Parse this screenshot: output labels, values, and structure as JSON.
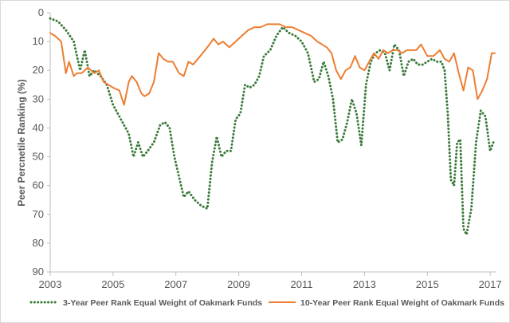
{
  "chart_data": {
    "type": "line",
    "ylabel": "Peer Percnetile Ranking (%)",
    "xlabel": "",
    "xlim": [
      2003,
      2017.2
    ],
    "ylim": [
      0,
      90
    ],
    "y_inverted": true,
    "x_ticks": [
      "2003",
      "2005",
      "2007",
      "2009",
      "2011",
      "2013",
      "2015",
      "2017"
    ],
    "y_ticks": [
      "0",
      "10",
      "20",
      "30",
      "40",
      "50",
      "60",
      "70",
      "80",
      "90"
    ],
    "grid": false,
    "legend_position": "bottom",
    "series": [
      {
        "name": "3-Year Peer Rank Equal Weight of Oakmark Funds",
        "color": "#3a7a3a",
        "style": "dotted",
        "x": [
          2003.0,
          2003.25,
          2003.5,
          2003.75,
          2003.95,
          2004.1,
          2004.25,
          2004.4,
          2004.6,
          2004.8,
          2005.0,
          2005.25,
          2005.5,
          2005.65,
          2005.8,
          2005.95,
          2006.1,
          2006.3,
          2006.5,
          2006.65,
          2006.8,
          2006.95,
          2007.1,
          2007.25,
          2007.4,
          2007.6,
          2007.8,
          2008.0,
          2008.15,
          2008.3,
          2008.45,
          2008.6,
          2008.75,
          2008.9,
          2009.05,
          2009.2,
          2009.35,
          2009.5,
          2009.65,
          2009.8,
          2010.0,
          2010.2,
          2010.4,
          2010.6,
          2010.8,
          2011.0,
          2011.2,
          2011.4,
          2011.55,
          2011.7,
          2011.85,
          2012.0,
          2012.15,
          2012.3,
          2012.45,
          2012.6,
          2012.75,
          2012.9,
          2013.05,
          2013.2,
          2013.35,
          2013.5,
          2013.65,
          2013.8,
          2013.95,
          2014.1,
          2014.25,
          2014.4,
          2014.55,
          2014.7,
          2014.85,
          2015.0,
          2015.15,
          2015.3,
          2015.45,
          2015.55,
          2015.65,
          2015.75,
          2015.85,
          2015.95,
          2016.05,
          2016.15,
          2016.25,
          2016.4,
          2016.55,
          2016.7,
          2016.85,
          2017.0,
          2017.1
        ],
        "values": [
          2,
          3,
          6,
          10,
          20,
          13,
          22,
          20,
          22,
          25,
          32,
          37,
          42,
          50,
          45,
          50,
          48,
          45,
          39,
          38,
          40,
          50,
          57,
          64,
          62,
          65,
          67,
          68,
          52,
          43,
          50,
          48,
          48,
          37,
          35,
          25,
          26,
          25,
          22,
          15,
          13,
          8,
          5,
          7,
          8,
          10,
          14,
          24,
          23,
          17,
          22,
          30,
          45,
          44,
          38,
          30,
          35,
          46,
          25,
          17,
          14,
          13,
          14,
          20,
          11,
          13,
          22,
          17,
          16,
          18,
          18,
          17,
          16,
          17,
          17,
          20,
          35,
          58,
          60,
          45,
          44,
          75,
          77,
          68,
          45,
          34,
          36,
          48,
          45
        ]
      },
      {
        "name": "10-Year Peer Rank Equal Weight of Oakmark Funds",
        "color": "#ed7d31",
        "style": "solid",
        "x": [
          2003.0,
          2003.15,
          2003.35,
          2003.5,
          2003.6,
          2003.75,
          2003.85,
          2004.0,
          2004.2,
          2004.4,
          2004.55,
          2004.7,
          2004.85,
          2005.0,
          2005.2,
          2005.35,
          2005.5,
          2005.6,
          2005.75,
          2005.9,
          2006.0,
          2006.15,
          2006.3,
          2006.45,
          2006.6,
          2006.75,
          2006.9,
          2007.1,
          2007.25,
          2007.4,
          2007.55,
          2007.7,
          2007.85,
          2008.0,
          2008.2,
          2008.35,
          2008.5,
          2008.7,
          2008.9,
          2009.1,
          2009.3,
          2009.5,
          2009.7,
          2009.9,
          2010.1,
          2010.3,
          2010.5,
          2010.7,
          2010.9,
          2011.1,
          2011.3,
          2011.5,
          2011.65,
          2011.8,
          2011.95,
          2012.1,
          2012.25,
          2012.4,
          2012.55,
          2012.7,
          2012.85,
          2013.0,
          2013.15,
          2013.3,
          2013.45,
          2013.6,
          2013.75,
          2013.9,
          2014.05,
          2014.2,
          2014.35,
          2014.5,
          2014.65,
          2014.8,
          2015.0,
          2015.2,
          2015.4,
          2015.55,
          2015.7,
          2015.85,
          2016.0,
          2016.15,
          2016.3,
          2016.45,
          2016.6,
          2016.75,
          2016.9,
          2017.05,
          2017.15
        ],
        "values": [
          7,
          8,
          10,
          21,
          17,
          22,
          21,
          21,
          19,
          21,
          20,
          24,
          25,
          26,
          27,
          32,
          24,
          22,
          24,
          28,
          29,
          28,
          24,
          14,
          16,
          17,
          17,
          21,
          22,
          17,
          18,
          16,
          14,
          12,
          9,
          11,
          10,
          12,
          10,
          8,
          6,
          5,
          5,
          4,
          4,
          4,
          5,
          5,
          6,
          7,
          8,
          10,
          11,
          12,
          14,
          20,
          23,
          20,
          19,
          15,
          19,
          20,
          17,
          14,
          16,
          13,
          14,
          13,
          13,
          14,
          13,
          13,
          13,
          11,
          15,
          15,
          13,
          16,
          17,
          14,
          21,
          27,
          19,
          20,
          30,
          27,
          23,
          14,
          14
        ]
      }
    ]
  },
  "legend": {
    "item1": "3-Year Peer Rank Equal Weight of Oakmark Funds",
    "item2": "10-Year Peer Rank Equal Weight of Oakmark Funds"
  }
}
